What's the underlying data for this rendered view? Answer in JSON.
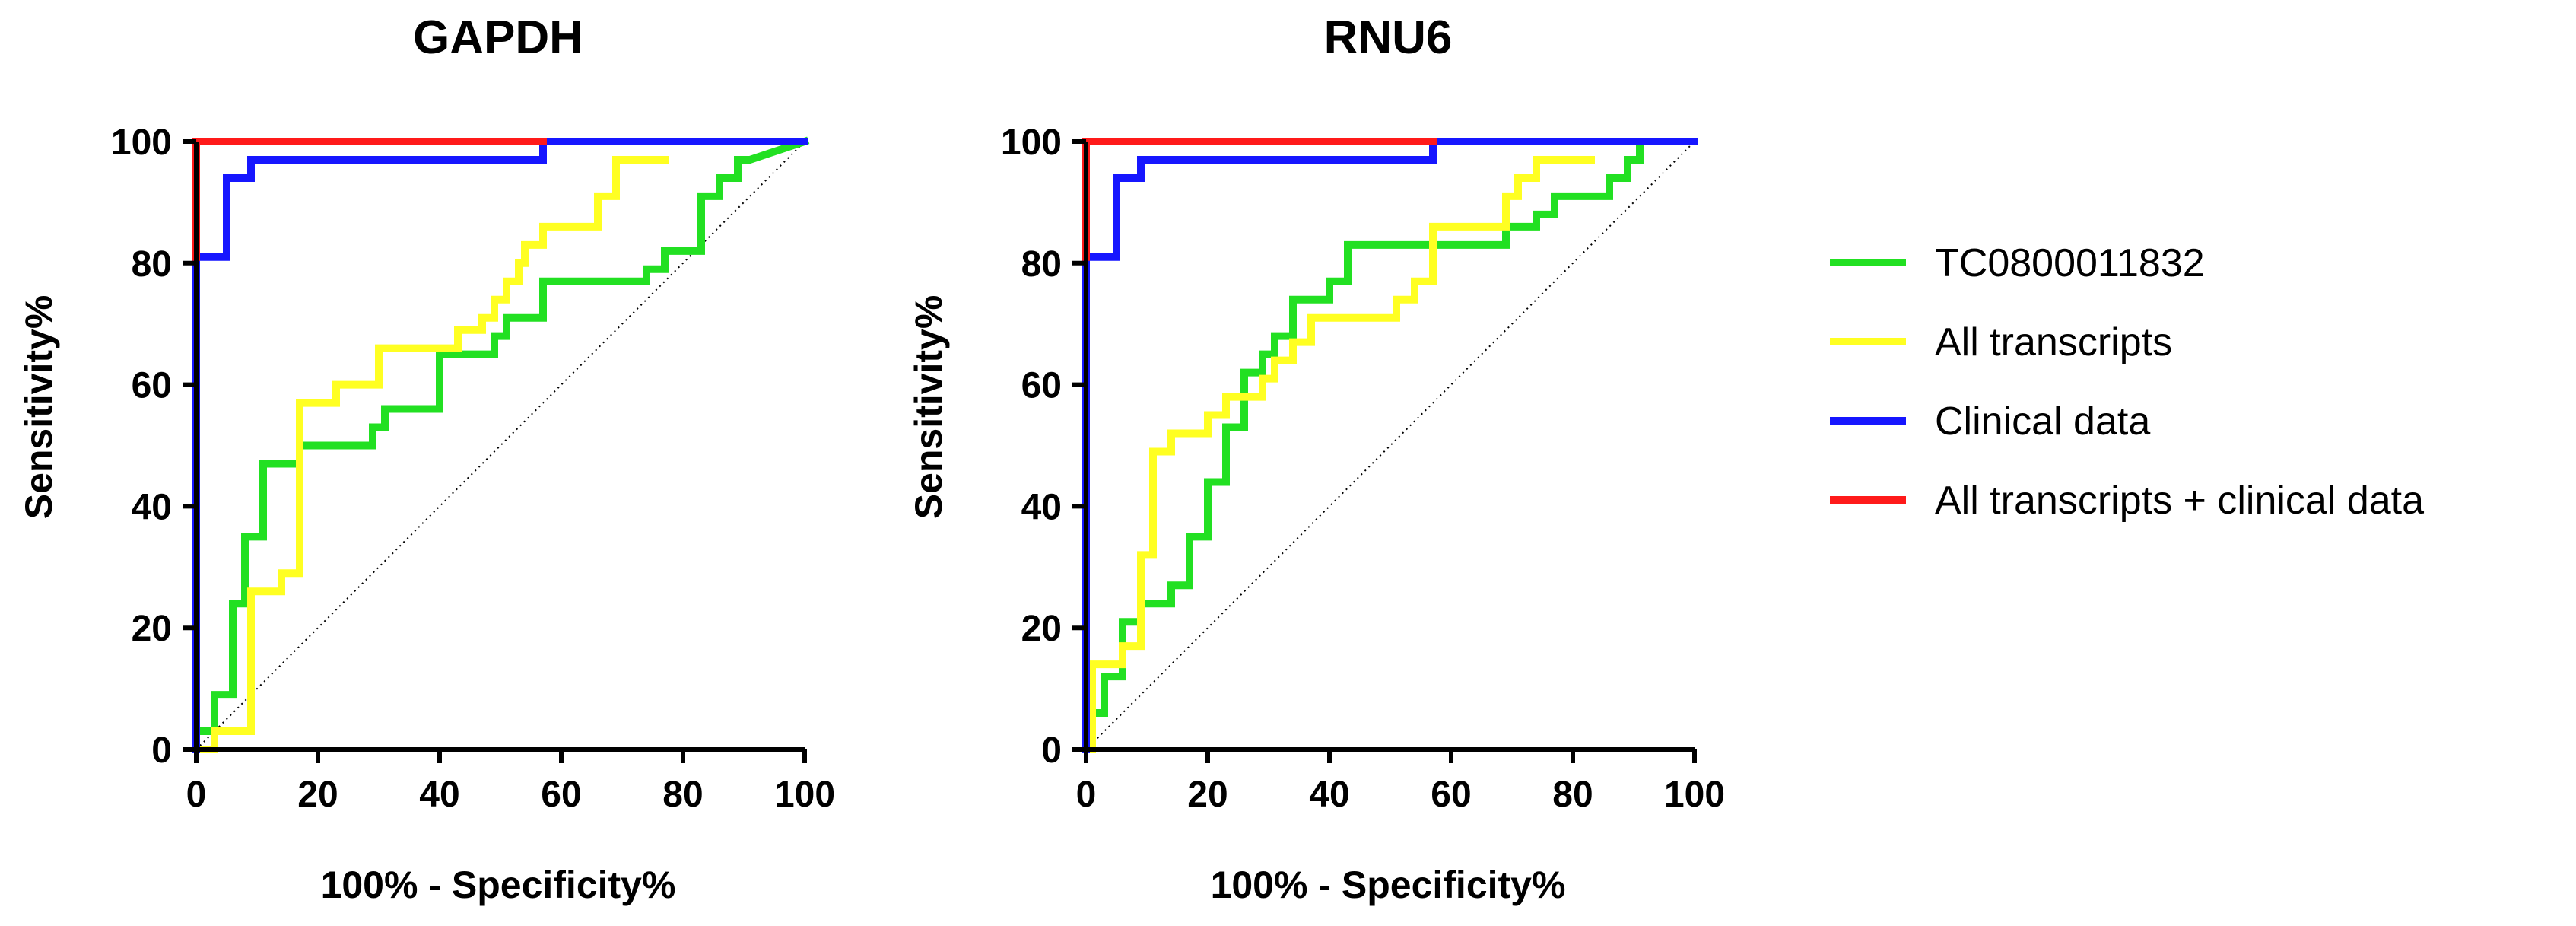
{
  "chart_data": [
    {
      "type": "line",
      "title": "GAPDH",
      "xlabel": "100% - Specificity%",
      "ylabel": "Sensitivity%",
      "xlim": [
        0,
        100
      ],
      "ylim": [
        0,
        100
      ],
      "xticks": [
        "0",
        "20",
        "40",
        "60",
        "80",
        "100"
      ],
      "yticks": [
        "0",
        "20",
        "40",
        "60",
        "80",
        "100"
      ],
      "grid": false,
      "reference_line": {
        "x": [
          0,
          100
        ],
        "y": [
          0,
          100
        ],
        "style": "dotted"
      },
      "series": [
        {
          "name": "TC0800011832",
          "color": "#22e022",
          "x": [
            0,
            0,
            3,
            3,
            6,
            6,
            8,
            8,
            11,
            11,
            14,
            14,
            17,
            17,
            23,
            23,
            29,
            29,
            31,
            31,
            37,
            37,
            40,
            40,
            43,
            43,
            49,
            49,
            51,
            51,
            57,
            57,
            74,
            74,
            77,
            77,
            80,
            80,
            83,
            83,
            86,
            86,
            89,
            89,
            91,
            91,
            100
          ],
          "y": [
            0,
            3,
            3,
            9,
            9,
            24,
            24,
            35,
            35,
            47,
            47,
            47,
            47,
            50,
            50,
            50,
            50,
            53,
            53,
            56,
            56,
            56,
            56,
            65,
            65,
            65,
            65,
            68,
            68,
            71,
            71,
            77,
            77,
            79,
            79,
            82,
            82,
            82,
            82,
            91,
            91,
            94,
            94,
            97,
            97,
            97,
            100
          ]
        },
        {
          "name": "All transcripts",
          "color": "#ffff22",
          "x": [
            0,
            3,
            3,
            9,
            9,
            14,
            14,
            17,
            17,
            20,
            20,
            23,
            23,
            30,
            30,
            40,
            40,
            43,
            43,
            47,
            47,
            49,
            49,
            51,
            51,
            53,
            53,
            54,
            54,
            57,
            57,
            63,
            63,
            66,
            66,
            69,
            69,
            71,
            71,
            77,
            77
          ],
          "y": [
            0,
            0,
            3,
            3,
            26,
            26,
            29,
            29,
            57,
            57,
            57,
            57,
            60,
            60,
            66,
            66,
            66,
            66,
            69,
            69,
            71,
            71,
            74,
            74,
            77,
            77,
            80,
            80,
            83,
            83,
            86,
            86,
            86,
            86,
            91,
            91,
            97,
            97,
            97,
            97,
            97
          ]
        },
        {
          "name": "Clinical data",
          "color": "#1616ff",
          "x": [
            0,
            0,
            0,
            5,
            5,
            9,
            9,
            11,
            11,
            57,
            57,
            100
          ],
          "y": [
            0,
            81,
            81,
            81,
            94,
            94,
            97,
            97,
            97,
            97,
            100,
            100
          ]
        },
        {
          "name": "All transcripts + clinical data",
          "color": "#ff1a1a",
          "x": [
            0,
            0,
            0,
            57
          ],
          "y": [
            81,
            100,
            100,
            100
          ]
        }
      ]
    },
    {
      "type": "line",
      "title": "RNU6",
      "xlabel": "100% - Specificity%",
      "ylabel": "Sensitivity%",
      "xlim": [
        0,
        100
      ],
      "ylim": [
        0,
        100
      ],
      "xticks": [
        "0",
        "20",
        "40",
        "60",
        "80",
        "100"
      ],
      "yticks": [
        "0",
        "20",
        "40",
        "60",
        "80",
        "100"
      ],
      "grid": false,
      "reference_line": {
        "x": [
          0,
          100
        ],
        "y": [
          0,
          100
        ],
        "style": "dotted"
      },
      "series": [
        {
          "name": "TC0800011832",
          "color": "#22e022",
          "x": [
            0,
            3,
            3,
            6,
            6,
            9,
            9,
            14,
            14,
            17,
            17,
            20,
            20,
            23,
            23,
            26,
            26,
            29,
            29,
            31,
            31,
            34,
            34,
            40,
            40,
            43,
            43,
            69,
            69,
            74,
            74,
            77,
            77,
            80,
            80,
            86,
            86,
            89,
            89,
            91,
            91
          ],
          "y": [
            6,
            6,
            12,
            12,
            21,
            21,
            24,
            24,
            27,
            27,
            35,
            35,
            44,
            44,
            53,
            53,
            62,
            62,
            65,
            65,
            68,
            68,
            74,
            74,
            77,
            77,
            83,
            83,
            86,
            86,
            88,
            88,
            91,
            91,
            91,
            91,
            94,
            94,
            97,
            97,
            100
          ]
        },
        {
          "name": "All transcripts",
          "color": "#ffff22",
          "x": [
            0,
            1,
            1,
            6,
            6,
            9,
            9,
            11,
            11,
            14,
            14,
            20,
            20,
            23,
            23,
            29,
            29,
            31,
            31,
            34,
            34,
            37,
            37,
            51,
            51,
            54,
            54,
            57,
            57,
            69,
            69,
            71,
            71,
            74,
            74,
            80,
            80,
            83,
            83
          ],
          "y": [
            0,
            0,
            14,
            14,
            17,
            17,
            32,
            32,
            49,
            49,
            52,
            52,
            55,
            55,
            58,
            58,
            61,
            61,
            64,
            64,
            67,
            67,
            71,
            71,
            74,
            74,
            77,
            77,
            86,
            86,
            91,
            91,
            94,
            94,
            97,
            97,
            97,
            97,
            97
          ]
        },
        {
          "name": "Clinical data",
          "color": "#1616ff",
          "x": [
            0,
            0,
            0,
            5,
            5,
            9,
            9,
            11,
            11,
            57,
            57,
            100
          ],
          "y": [
            0,
            81,
            81,
            81,
            94,
            94,
            97,
            97,
            97,
            97,
            100,
            100
          ]
        },
        {
          "name": "All transcripts + clinical data",
          "color": "#ff1a1a",
          "x": [
            0,
            0,
            0,
            57
          ],
          "y": [
            81,
            100,
            100,
            100
          ]
        }
      ]
    }
  ],
  "legend": {
    "placement": "right",
    "items": [
      {
        "label": "TC0800011832",
        "color": "#22e022"
      },
      {
        "label": "All transcripts",
        "color": "#ffff22"
      },
      {
        "label": "Clinical data",
        "color": "#1616ff"
      },
      {
        "label": "All transcripts + clinical data",
        "color": "#ff1a1a"
      }
    ]
  }
}
